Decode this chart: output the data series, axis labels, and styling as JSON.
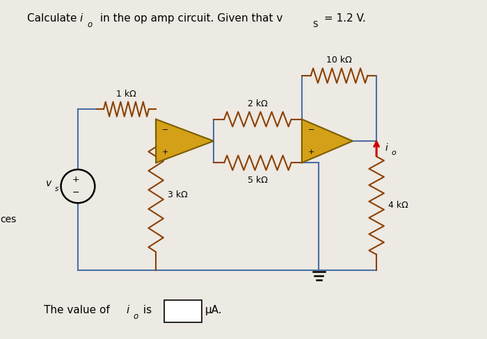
{
  "title_plain": "Calculate ",
  "title_io": "i",
  "title_sub": "o",
  "title_rest": " in the op amp circuit. Given that v",
  "title_vs_sub": "S",
  "title_end": " = 1.2 V.",
  "bg_color": "#ede9e3",
  "wire_color": "#4a6fa5",
  "resistor_color": "#8B4000",
  "opamp_fill": "#d4a017",
  "opamp_border": "#7a5c00",
  "arrow_color": "#cc0000",
  "r1_label": "1 kΩ",
  "r2_label": "2 kΩ",
  "r3_label": "3 kΩ",
  "r4_label": "4 kΩ",
  "r5_label": "5 kΩ",
  "r10_label": "10 kΩ",
  "vs_label": "v",
  "vs_sub": "s",
  "io_label": "i",
  "io_sub": "o",
  "left_label": "ces",
  "bottom_text": "The value of ",
  "bottom_io": "i",
  "bottom_io_sub": "o",
  "bottom_is": " is",
  "bottom_unit": "μA."
}
